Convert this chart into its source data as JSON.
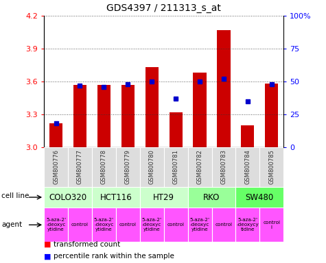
{
  "title": "GDS4397 / 211313_s_at",
  "samples": [
    "GSM800776",
    "GSM800777",
    "GSM800778",
    "GSM800779",
    "GSM800780",
    "GSM800781",
    "GSM800782",
    "GSM800783",
    "GSM800784",
    "GSM800785"
  ],
  "transformed_counts": [
    3.22,
    3.57,
    3.57,
    3.57,
    3.73,
    3.32,
    3.68,
    4.07,
    3.2,
    3.58
  ],
  "percentile_ranks": [
    18,
    47,
    46,
    48,
    50,
    37,
    50,
    52,
    35,
    48
  ],
  "ylim": [
    3.0,
    4.2
  ],
  "yticks": [
    3.0,
    3.3,
    3.6,
    3.9,
    4.2
  ],
  "right_yticks": [
    0,
    25,
    50,
    75,
    100
  ],
  "bar_color": "#cc0000",
  "dot_color": "#0000cc",
  "bar_bottom": 3.0,
  "cell_lines": [
    {
      "name": "COLO320",
      "start": 0,
      "end": 2,
      "color": "#ccffcc"
    },
    {
      "name": "HCT116",
      "start": 2,
      "end": 4,
      "color": "#ccffcc"
    },
    {
      "name": "HT29",
      "start": 4,
      "end": 6,
      "color": "#ccffcc"
    },
    {
      "name": "RKO",
      "start": 6,
      "end": 8,
      "color": "#99ff99"
    },
    {
      "name": "SW480",
      "start": 8,
      "end": 10,
      "color": "#66ff66"
    }
  ],
  "agent_labels": [
    "5-aza-2'\n-deoxyc\nytidine",
    "control",
    "5-aza-2'\n-deoxyc\nytidine",
    "control",
    "5-aza-2'\n-deoxyc\nytidine",
    "control",
    "5-aza-2'\n-deoxyc\nytidine",
    "control",
    "5-aza-2'\n-deoxycy\ntidine",
    "control\nl"
  ],
  "agent_color": "#ff55ff",
  "sample_bg_color": "#dddddd",
  "label_color": "#333333",
  "grid_color": "#333333"
}
